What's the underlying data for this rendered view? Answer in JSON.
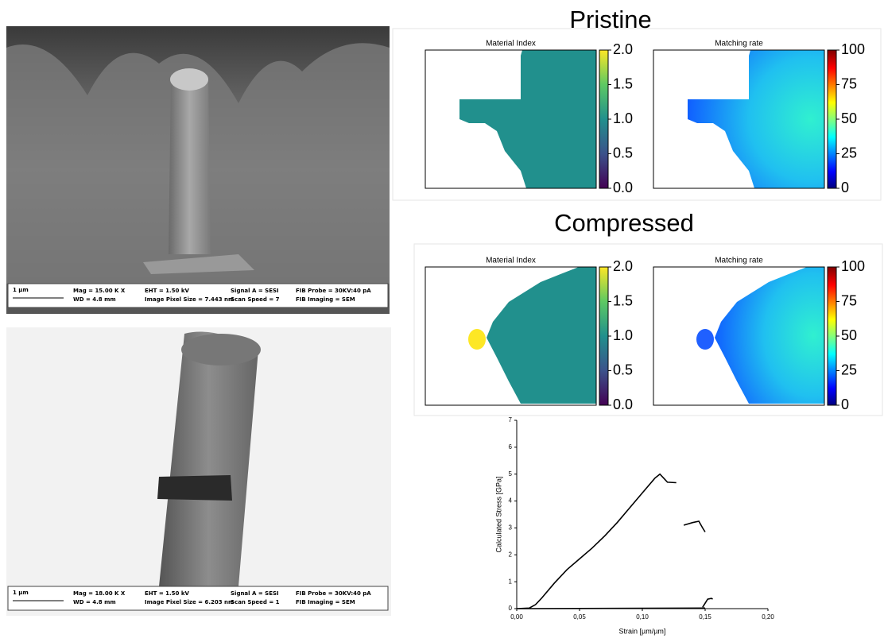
{
  "sem_images": [
    {
      "scale": "1 µm",
      "info": [
        [
          "Mag = 15.00 K X",
          "WD = 4.8 mm"
        ],
        [
          "EHT = 1.50 kV",
          "Image Pixel Size = 7.443 nm"
        ],
        [
          "Signal A = SESI",
          "Scan Speed = 7"
        ],
        [
          "FIB Probe = 30KV:40 pA",
          "FIB Imaging = SEM"
        ]
      ]
    },
    {
      "scale": "1 µm",
      "info": [
        [
          "Mag = 18.00 K X",
          "WD = 4.8 mm"
        ],
        [
          "EHT = 1.50 kV",
          "Image Pixel Size = 6.203 nm"
        ],
        [
          "Signal A = SESI",
          "Scan Speed = 1"
        ],
        [
          "FIB Probe = 30KV:40 pA",
          "FIB Imaging = SEM"
        ]
      ]
    }
  ],
  "map_sets": [
    {
      "title": "Pristine",
      "maps": [
        {
          "title": "Material Index",
          "clim": [
            0,
            2
          ],
          "ticks": [
            {
              "value": 0,
              "label": "0.0"
            },
            {
              "value": 0.5,
              "label": "0.5"
            },
            {
              "value": 1,
              "label": "1.0"
            },
            {
              "value": 1.5,
              "label": "1.5"
            },
            {
              "value": 2,
              "label": "2.0"
            }
          ]
        },
        {
          "title": "Matching rate",
          "clim": [
            0,
            100
          ],
          "ticks": [
            0,
            25,
            50,
            75,
            100
          ]
        }
      ]
    },
    {
      "title": "Compressed",
      "maps": [
        {
          "title": "Material Index",
          "clim": [
            0,
            2
          ],
          "ticks": [
            {
              "value": 0,
              "label": "0.0"
            },
            {
              "value": 0.5,
              "label": "0.5"
            },
            {
              "value": 1,
              "label": "1.0"
            },
            {
              "value": 1.5,
              "label": "1.5"
            },
            {
              "value": 2,
              "label": "2.0"
            }
          ]
        },
        {
          "title": "Matching rate",
          "clim": [
            0,
            100
          ],
          "ticks": [
            0,
            25,
            50,
            75,
            100
          ]
        }
      ]
    }
  ],
  "chart_data": {
    "type": "line",
    "xlabel": "Strain [µm/µm]",
    "ylabel": "Calculated Stress [GPa]",
    "xlim": [
      0,
      0.2
    ],
    "ylim": [
      0,
      7
    ],
    "xticks": [
      {
        "value": 0,
        "label": "0,00"
      },
      {
        "value": 0.05,
        "label": "0,05"
      },
      {
        "value": 0.1,
        "label": "0,10"
      },
      {
        "value": 0.15,
        "label": "0,15"
      },
      {
        "value": 0.2,
        "label": "0,20"
      }
    ],
    "yticks": [
      0,
      1,
      2,
      3,
      4,
      5,
      6,
      7
    ],
    "series": [
      {
        "color": "#000000",
        "x": [
          0,
          0.01,
          0.015,
          0.02,
          0.03,
          0.04,
          0.05,
          0.06,
          0.07,
          0.08,
          0.09,
          0.1,
          0.11,
          0.114,
          0.117,
          0.12,
          0.127,
          null,
          0.133,
          0.14,
          0.145,
          0.148,
          0.15,
          null,
          0.148,
          0.15,
          0.152,
          0.155,
          0.156,
          null,
          0,
          0.15
        ],
        "values": [
          0,
          0.02,
          0.15,
          0.4,
          0.95,
          1.45,
          1.85,
          2.25,
          2.7,
          3.2,
          3.75,
          4.3,
          4.85,
          5.0,
          4.85,
          4.7,
          4.68,
          null,
          3.1,
          3.2,
          3.25,
          3.0,
          2.85,
          null,
          0.05,
          0.2,
          0.35,
          0.38,
          0.35,
          null,
          0,
          0.02
        ]
      }
    ]
  }
}
